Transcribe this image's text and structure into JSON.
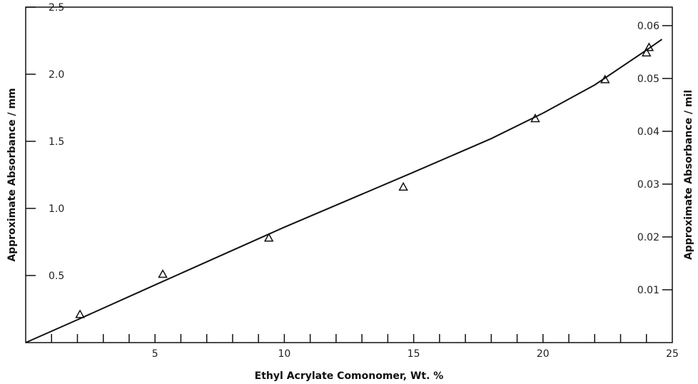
{
  "chart_data": {
    "type": "scatter",
    "xlabel": "Ethyl Acrylate Comonomer, Wt. %",
    "ylabel_left": "Approximate Absorbance / mm",
    "ylabel_right": "Approximate Absorbance / mil",
    "xlim": [
      0,
      25
    ],
    "ylim_left": [
      0,
      2.5
    ],
    "ylim_right": [
      0,
      0.0635
    ],
    "x_ticks": [
      1,
      2,
      3,
      4,
      5,
      6,
      7,
      8,
      9,
      10,
      11,
      12,
      13,
      14,
      15,
      16,
      17,
      18,
      19,
      20,
      21,
      22,
      23,
      24
    ],
    "x_tick_labels": [
      "5",
      "10",
      "15",
      "20",
      "25"
    ],
    "x_tick_label_values": [
      5,
      10,
      15,
      20,
      25
    ],
    "y_left_ticks": [
      0.5,
      1.0,
      1.5,
      2.0,
      2.5
    ],
    "y_left_tick_labels": [
      "0.5",
      "1.0",
      "1.5",
      "2.0",
      "2.5"
    ],
    "y_right_ticks": [
      0.01,
      0.02,
      0.03,
      0.04,
      0.05,
      0.06
    ],
    "y_right_tick_labels": [
      "0.01",
      "0.02",
      "0.03",
      "0.04",
      "0.05",
      "0.06"
    ],
    "series": [
      {
        "marker": "triangle",
        "points": [
          {
            "x": 2.1,
            "y": 0.21
          },
          {
            "x": 5.3,
            "y": 0.51
          },
          {
            "x": 9.4,
            "y": 0.78
          },
          {
            "x": 14.6,
            "y": 1.16
          },
          {
            "x": 19.7,
            "y": 1.67
          },
          {
            "x": 22.4,
            "y": 1.96
          },
          {
            "x": 24.0,
            "y": 2.16
          },
          {
            "x": 24.1,
            "y": 2.2
          }
        ]
      },
      {
        "type": "line",
        "points": [
          {
            "x": 0,
            "y": 0
          },
          {
            "x": 2,
            "y": 0.17
          },
          {
            "x": 5,
            "y": 0.43
          },
          {
            "x": 10,
            "y": 0.86
          },
          {
            "x": 15,
            "y": 1.27
          },
          {
            "x": 18,
            "y": 1.52
          },
          {
            "x": 20,
            "y": 1.71
          },
          {
            "x": 22,
            "y": 1.92
          },
          {
            "x": 24,
            "y": 2.18
          },
          {
            "x": 24.6,
            "y": 2.26
          }
        ]
      }
    ]
  }
}
